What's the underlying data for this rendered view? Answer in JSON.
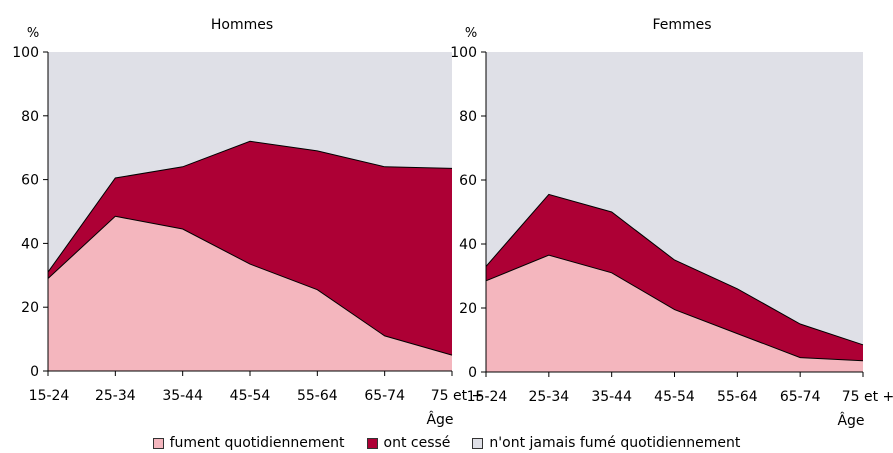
{
  "colors": {
    "fument": "#f4b6be",
    "cesse": "#ad0035",
    "jamais": "#dfe0e7",
    "line": "#000000"
  },
  "legend": [
    {
      "key": "fument",
      "label": "fument quotidiennement"
    },
    {
      "key": "cesse",
      "label": "ont cessé"
    },
    {
      "key": "jamais",
      "label": "n'ont jamais fumé quotidiennement"
    }
  ],
  "chart_data": [
    {
      "type": "area",
      "stacked": true,
      "title": "Hommes",
      "ylabel": "%",
      "xlabel": "Âge",
      "ylim": [
        0,
        100
      ],
      "yticks": [
        0,
        20,
        40,
        60,
        80,
        100
      ],
      "grid": false,
      "categories": [
        "15-24",
        "25-34",
        "35-44",
        "45-54",
        "55-64",
        "65-74",
        "75 et +"
      ],
      "series": [
        {
          "name": "fument quotidiennement",
          "key": "fument",
          "values": [
            29,
            48.5,
            44.5,
            33.5,
            25.5,
            11,
            5
          ]
        },
        {
          "name": "ont cessé",
          "key": "cesse",
          "values": [
            2,
            12,
            19.5,
            38.5,
            43.5,
            53,
            58.5
          ]
        },
        {
          "name": "n'ont jamais fumé quotidiennement",
          "key": "jamais",
          "values": [
            69,
            39.5,
            36,
            28,
            31,
            36,
            36.5
          ]
        }
      ]
    },
    {
      "type": "area",
      "stacked": true,
      "title": "Femmes",
      "ylabel": "%",
      "xlabel": "Âge",
      "ylim": [
        0,
        100
      ],
      "yticks": [
        0,
        20,
        40,
        60,
        80,
        100
      ],
      "grid": false,
      "categories": [
        "15-24",
        "25-34",
        "35-44",
        "45-54",
        "55-64",
        "65-74",
        "75 et +"
      ],
      "series": [
        {
          "name": "fument quotidiennement",
          "key": "fument",
          "values": [
            28.5,
            36.5,
            31,
            19.5,
            12,
            4.5,
            3.5
          ]
        },
        {
          "name": "ont cessé",
          "key": "cesse",
          "values": [
            4.5,
            19,
            19,
            15.5,
            14,
            10.5,
            5
          ]
        },
        {
          "name": "n'ont jamais fumé quotidiennement",
          "key": "jamais",
          "values": [
            67,
            44.5,
            50,
            65,
            74,
            85,
            91.5
          ]
        }
      ]
    }
  ]
}
